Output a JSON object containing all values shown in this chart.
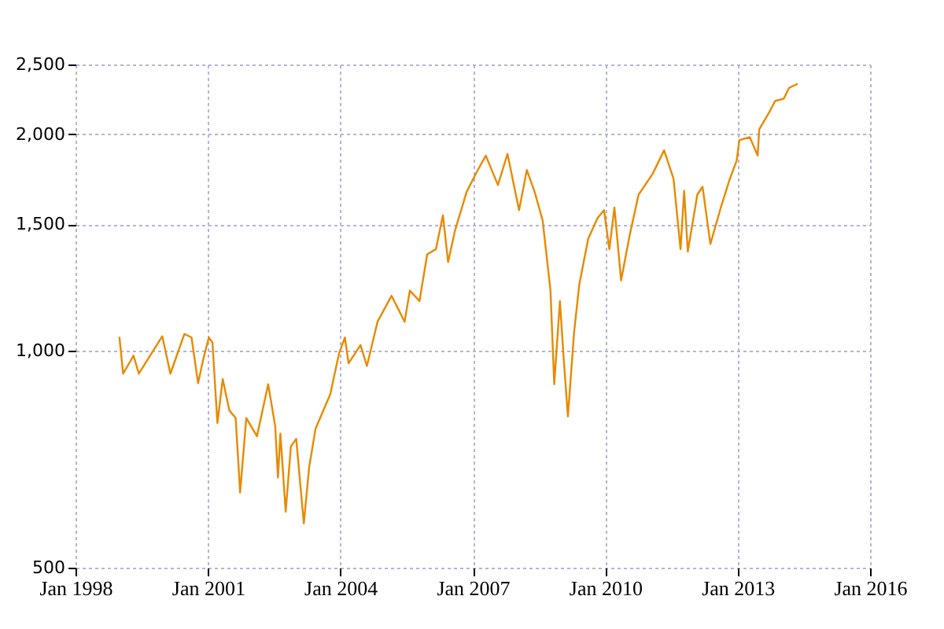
{
  "chart_data": {
    "type": "line",
    "log": "y",
    "grid": true,
    "marker": "none",
    "line_style": "solid",
    "xlim": [
      "1998-01",
      "2016-01"
    ],
    "xticks": [
      {
        "value": "1998-01",
        "label": "Jan 1998"
      },
      {
        "value": "2001-01",
        "label": "Jan 2001"
      },
      {
        "value": "2004-01",
        "label": "Jan 2004"
      },
      {
        "value": "2007-01",
        "label": "Jan 2007"
      },
      {
        "value": "2010-01",
        "label": "Jan 2010"
      },
      {
        "value": "2013-01",
        "label": "Jan 2013"
      },
      {
        "value": "2016-01",
        "label": "Jan 2016"
      }
    ],
    "ylim": [
      500,
      2500
    ],
    "yticks": [
      {
        "value": 500,
        "label": "500"
      },
      {
        "value": 1000,
        "label": "1,000"
      },
      {
        "value": 1500,
        "label": "1,500"
      },
      {
        "value": 2000,
        "label": "2,000"
      },
      {
        "value": 2500,
        "label": "2,500"
      }
    ],
    "x": [
      "1998-12-30",
      "1999-01-30",
      "1999-04-26",
      "1999-06-09",
      "1999-12-20",
      "2000-02-25",
      "2000-06-20",
      "2000-08-18",
      "2000-10-11",
      "2000-11-25",
      "2001-01-08",
      "2001-02-07",
      "2001-03-20",
      "2001-05-03",
      "2001-06-27",
      "2001-08-18",
      "2001-09-24",
      "2001-11-14",
      "2002-02-10",
      "2002-05-14",
      "2002-07-11",
      "2002-08-03",
      "2002-08-23",
      "2002-10-06",
      "2002-11-18",
      "2003-01-01",
      "2003-03-05",
      "2003-04-18",
      "2003-06-10",
      "2003-10-09",
      "2003-12-22",
      "2004-02-08",
      "2004-03-09",
      "2004-06-16",
      "2004-08-08",
      "2004-11-04",
      "2005-02-28",
      "2005-06-16",
      "2005-07-29",
      "2005-10-17",
      "2005-12-20",
      "2006-03-02",
      "2006-04-29",
      "2006-06-11",
      "2006-08-06",
      "2006-11-11",
      "2007-02-06",
      "2007-04-19",
      "2007-07-28",
      "2007-10-15",
      "2008-01-19",
      "2008-03-23",
      "2008-05-27",
      "2008-08-01",
      "2008-10-05",
      "2008-11-05",
      "2008-12-22",
      "2009-01-22",
      "2009-02-26",
      "2009-04-18",
      "2009-05-30",
      "2009-08-13",
      "2009-10-30",
      "2009-12-22",
      "2010-02-04",
      "2010-03-18",
      "2010-05-12",
      "2010-07-25",
      "2010-10-04",
      "2011-01-29",
      "2011-05-03",
      "2011-07-20",
      "2011-09-16",
      "2011-10-16",
      "2011-11-15",
      "2012-02-02",
      "2012-03-16",
      "2012-05-20",
      "2012-08-14",
      "2012-10-28",
      "2012-12-23",
      "2013-01-15",
      "2013-04-11",
      "2013-06-15",
      "2013-06-28",
      "2013-09-23",
      "2013-11-06",
      "2014-01-18",
      "2014-03-02",
      "2014-05-12"
    ],
    "series": [
      {
        "color": "#e88a00",
        "values": [
          1046,
          930,
          985,
          930,
          1048,
          930,
          1056,
          1044,
          902,
          977,
          1044,
          1027,
          794,
          914,
          827,
          807,
          636,
          807,
          761,
          899,
          787,
          667,
          768,
          598,
          737,
          755,
          576,
          689,
          780,
          870,
          993,
          1044,
          961,
          1019,
          953,
          1098,
          1193,
          1098,
          1213,
          1173,
          1362,
          1385,
          1543,
          1329,
          1468,
          1663,
          1777,
          1868,
          1700,
          1878,
          1569,
          1784,
          1663,
          1518,
          1213,
          899,
          1173,
          977,
          811,
          1061,
          1233,
          1432,
          1530,
          1569,
          1385,
          1582,
          1253,
          1456,
          1649,
          1763,
          1900,
          1734,
          1385,
          1669,
          1374,
          1649,
          1691,
          1408,
          1582,
          1734,
          1838,
          1963,
          1981,
          1868,
          2031,
          2152,
          2224,
          2242,
          2320,
          2350
        ]
      }
    ]
  }
}
